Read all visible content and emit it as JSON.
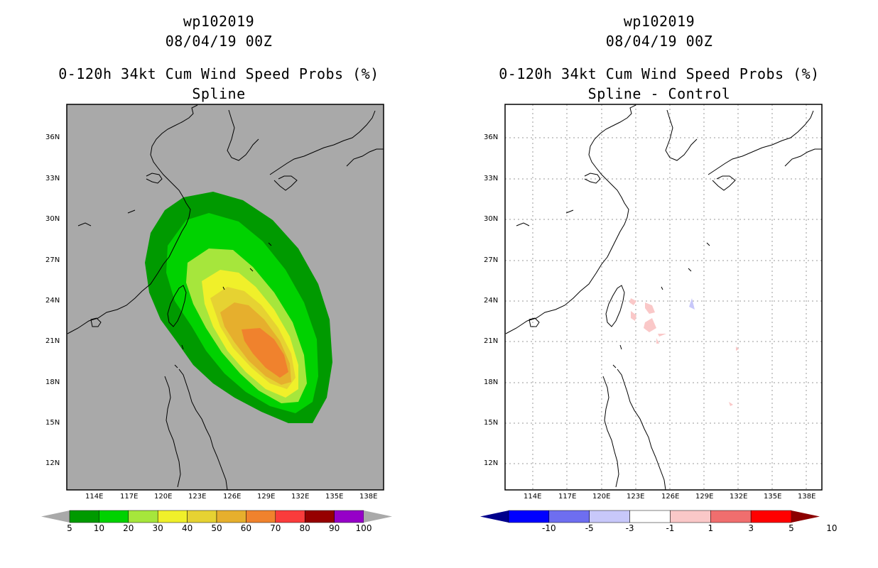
{
  "left": {
    "title1": "wp102019",
    "title2": "08/04/19 00Z",
    "title3": "0-120h 34kt Cum Wind Speed Probs (%)",
    "title4": "Spline",
    "colorbar": {
      "labels": [
        "5",
        "10",
        "20",
        "30",
        "40",
        "50",
        "60",
        "70",
        "80",
        "90",
        "100"
      ],
      "colors": [
        "#009a00",
        "#00d200",
        "#a6e63c",
        "#f0f02a",
        "#e6d232",
        "#e6af2d",
        "#f0822d",
        "#fa3c3c",
        "#960000",
        "#9600c8"
      ]
    }
  },
  "right": {
    "title1": "wp102019",
    "title2": "08/04/19 00Z",
    "title3": "0-120h 34kt Cum Wind Speed Probs (%)",
    "title4": "Spline - Control",
    "colorbar": {
      "labels": [
        "-10",
        "-5",
        "-3",
        "-1",
        "1",
        "3",
        "5",
        "10"
      ],
      "colors": [
        "#00008c",
        "#0000ff",
        "#6e6ef0",
        "#c8c8fa",
        "#ffffff",
        "#fac8c8",
        "#f06e6e",
        "#ff0000",
        "#8c0000"
      ]
    }
  },
  "axes": {
    "lat_labels": [
      "36N",
      "33N",
      "30N",
      "27N",
      "24N",
      "21N",
      "18N",
      "15N",
      "12N"
    ],
    "lon_labels": [
      "114E",
      "117E",
      "120E",
      "123E",
      "126E",
      "129E",
      "132E",
      "135E",
      "138E"
    ]
  },
  "colors": {
    "land_sea_bg": "#a9a9a9",
    "coast": "#000000",
    "grid": "#9a9a9a"
  }
}
